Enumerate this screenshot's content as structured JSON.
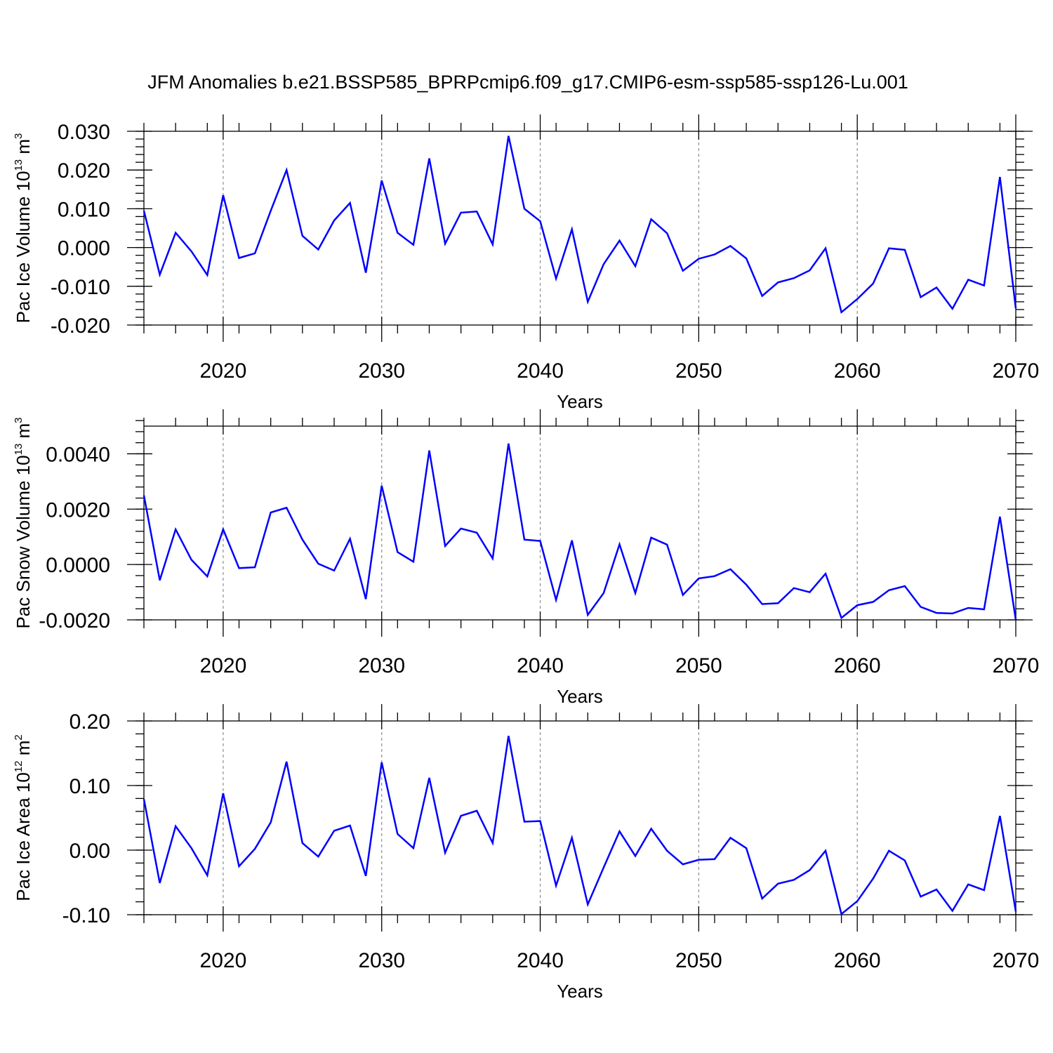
{
  "title": "JFM Anomalies b.e21.BSSP585_BPRPcmip6.f09_g17.CMIP6-esm-ssp585-ssp126-Lu.001",
  "chart_data": [
    {
      "type": "line",
      "ylabel": {
        "prefix": "Pac Ice Volume 10",
        "exp": "13",
        "unit": " m",
        "unit_exp": "3"
      },
      "xlabel": "Years",
      "xlim": [
        2015,
        2070
      ],
      "ylim": [
        -0.02,
        0.03
      ],
      "xticks": [
        "2020",
        "2030",
        "2040",
        "2050",
        "2060",
        "2070"
      ],
      "yticks": [
        {
          "value": 0.03,
          "label": "0.030"
        },
        {
          "value": 0.02,
          "label": "0.020"
        },
        {
          "value": 0.01,
          "label": "0.010"
        },
        {
          "value": 0.0,
          "label": "0.000"
        },
        {
          "value": -0.01,
          "label": "-0.010"
        },
        {
          "value": -0.02,
          "label": "-0.020"
        }
      ],
      "ygrid_minor_step": 0.002,
      "color": "#0000ff",
      "x": [
        2015,
        2016,
        2017,
        2018,
        2019,
        2020,
        2021,
        2022,
        2023,
        2024,
        2025,
        2026,
        2027,
        2028,
        2029,
        2030,
        2031,
        2032,
        2033,
        2034,
        2035,
        2036,
        2037,
        2038,
        2039,
        2040,
        2041,
        2042,
        2043,
        2044,
        2045,
        2046,
        2047,
        2048,
        2049,
        2050,
        2051,
        2052,
        2053,
        2054,
        2055,
        2056,
        2057,
        2058,
        2059,
        2060,
        2061,
        2062,
        2063,
        2064,
        2065,
        2066,
        2067,
        2068,
        2069,
        2070
      ],
      "y": [
        0.0095,
        -0.007,
        0.0038,
        -0.001,
        -0.0071,
        0.0135,
        -0.0027,
        -0.0015,
        0.0095,
        0.02,
        0.003,
        -0.0005,
        0.007,
        0.0115,
        -0.0065,
        0.0173,
        0.0038,
        0.0007,
        0.023,
        0.001,
        0.009,
        0.0093,
        0.0008,
        0.0288,
        0.01,
        0.0068,
        -0.008,
        0.0047,
        -0.014,
        -0.0043,
        0.0018,
        -0.0048,
        0.0073,
        0.0037,
        -0.006,
        -0.0029,
        -0.0018,
        0.0004,
        -0.0028,
        -0.0125,
        -0.009,
        -0.0079,
        -0.0059,
        -0.0002,
        -0.0167,
        -0.0133,
        -0.0093,
        -0.0002,
        -0.0006,
        -0.0128,
        -0.0103,
        -0.0158,
        -0.0083,
        -0.0098,
        0.0182,
        -0.0157
      ]
    },
    {
      "type": "line",
      "ylabel": {
        "prefix": "Pac Snow Volume 10",
        "exp": "13",
        "unit": " m",
        "unit_exp": "3"
      },
      "xlabel": "Years",
      "xlim": [
        2015,
        2070
      ],
      "ylim": [
        -0.002,
        0.005
      ],
      "xticks": [
        "2020",
        "2030",
        "2040",
        "2050",
        "2060",
        "2070"
      ],
      "yticks": [
        {
          "value": 0.004,
          "label": "0.0040"
        },
        {
          "value": 0.002,
          "label": "0.0020"
        },
        {
          "value": 0.0,
          "label": "0.0000"
        },
        {
          "value": -0.002,
          "label": "-0.0020"
        }
      ],
      "ygrid_minor_step": 0.0004,
      "color": "#0000ff",
      "x": [
        2015,
        2016,
        2017,
        2018,
        2019,
        2020,
        2021,
        2022,
        2023,
        2024,
        2025,
        2026,
        2027,
        2028,
        2029,
        2030,
        2031,
        2032,
        2033,
        2034,
        2035,
        2036,
        2037,
        2038,
        2039,
        2040,
        2041,
        2042,
        2043,
        2044,
        2045,
        2046,
        2047,
        2048,
        2049,
        2050,
        2051,
        2052,
        2053,
        2054,
        2055,
        2056,
        2057,
        2058,
        2059,
        2060,
        2061,
        2062,
        2063,
        2064,
        2065,
        2066,
        2067,
        2068,
        2069,
        2070
      ],
      "y": [
        0.0025,
        -0.00057,
        0.00127,
        0.00017,
        -0.00043,
        0.00127,
        -0.00013,
        -0.0001,
        0.00188,
        0.00205,
        0.0009,
        3e-05,
        -0.00022,
        0.00093,
        -0.00125,
        0.00285,
        0.00045,
        0.0001,
        0.00412,
        0.00067,
        0.0013,
        0.00115,
        0.00022,
        0.00437,
        0.0009,
        0.00085,
        -0.00128,
        0.00087,
        -0.00182,
        -0.00103,
        0.00073,
        -0.00103,
        0.00097,
        0.00072,
        -0.0011,
        -0.0005,
        -0.00042,
        -0.00017,
        -0.00073,
        -0.00143,
        -0.0014,
        -0.00085,
        -0.001,
        -0.00033,
        -0.00193,
        -0.00147,
        -0.00135,
        -0.00093,
        -0.00078,
        -0.00153,
        -0.00175,
        -0.00177,
        -0.00157,
        -0.00162,
        0.00173,
        -0.002
      ]
    },
    {
      "type": "line",
      "ylabel": {
        "prefix": "Pac Ice Area 10",
        "exp": "12",
        "unit": " m",
        "unit_exp": "2"
      },
      "xlabel": "Years",
      "xlim": [
        2015,
        2070
      ],
      "ylim": [
        -0.1,
        0.2
      ],
      "xticks": [
        "2020",
        "2030",
        "2040",
        "2050",
        "2060",
        "2070"
      ],
      "yticks": [
        {
          "value": 0.2,
          "label": "0.20"
        },
        {
          "value": 0.1,
          "label": "0.10"
        },
        {
          "value": 0.0,
          "label": "0.00"
        },
        {
          "value": -0.1,
          "label": "-0.10"
        }
      ],
      "ygrid_minor_step": 0.02,
      "color": "#0000ff",
      "x": [
        2015,
        2016,
        2017,
        2018,
        2019,
        2020,
        2021,
        2022,
        2023,
        2024,
        2025,
        2026,
        2027,
        2028,
        2029,
        2030,
        2031,
        2032,
        2033,
        2034,
        2035,
        2036,
        2037,
        2038,
        2039,
        2040,
        2041,
        2042,
        2043,
        2044,
        2045,
        2046,
        2047,
        2048,
        2049,
        2050,
        2051,
        2052,
        2053,
        2054,
        2055,
        2056,
        2057,
        2058,
        2059,
        2060,
        2061,
        2062,
        2063,
        2064,
        2065,
        2066,
        2067,
        2068,
        2069,
        2070
      ],
      "y": [
        0.079,
        -0.051,
        0.037,
        0.003,
        -0.039,
        0.088,
        -0.025,
        0.002,
        0.043,
        0.137,
        0.011,
        -0.01,
        0.03,
        0.038,
        -0.04,
        0.136,
        0.025,
        0.003,
        0.112,
        -0.004,
        0.053,
        0.061,
        0.011,
        0.177,
        0.044,
        0.045,
        -0.055,
        0.019,
        -0.084,
        -0.027,
        0.029,
        -0.009,
        0.033,
        -0.001,
        -0.022,
        -0.015,
        -0.014,
        0.019,
        0.003,
        -0.075,
        -0.052,
        -0.046,
        -0.031,
        -0.001,
        -0.099,
        -0.079,
        -0.044,
        -0.001,
        -0.016,
        -0.072,
        -0.061,
        -0.094,
        -0.053,
        -0.062,
        0.053,
        -0.095
      ]
    }
  ]
}
